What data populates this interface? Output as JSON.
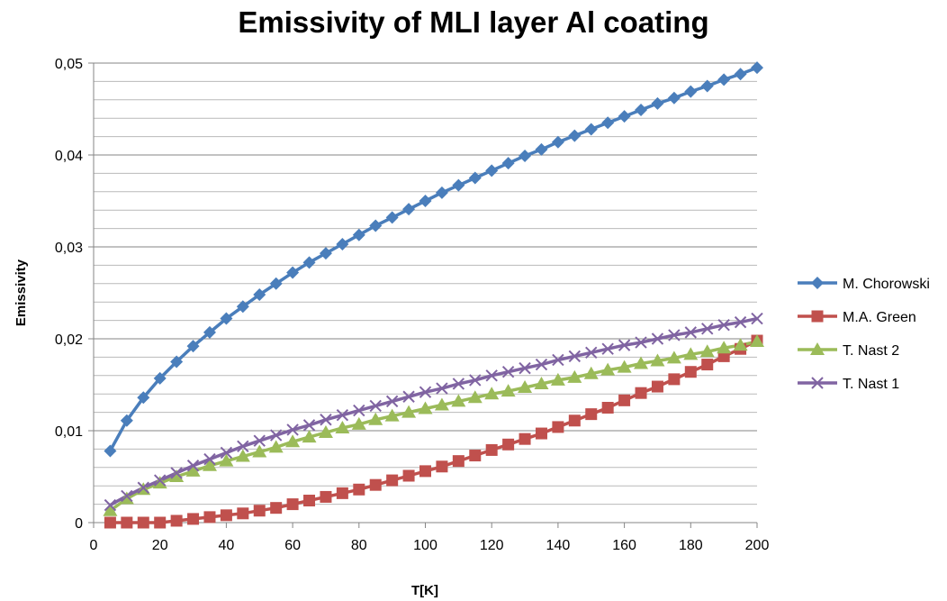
{
  "chart_data": {
    "type": "line",
    "title": "Emissivity of MLI layer Al coating",
    "xlabel": "T[K]",
    "ylabel": "Emissivity",
    "xlim": [
      0,
      200
    ],
    "ylim": [
      0,
      0.05
    ],
    "x_ticks": [
      0,
      20,
      40,
      60,
      80,
      100,
      120,
      140,
      160,
      180,
      200
    ],
    "x_tick_labels": [
      "0",
      "20",
      "40",
      "60",
      "80",
      "100",
      "120",
      "140",
      "160",
      "180",
      "200"
    ],
    "y_ticks": [
      0,
      0.01,
      0.02,
      0.03,
      0.04,
      0.05
    ],
    "y_tick_labels": [
      "0",
      "0,01",
      "0,02",
      "0,03",
      "0,04",
      "0,05"
    ],
    "grid": "horizontal",
    "legend_position": "right",
    "x": [
      5,
      10,
      15,
      20,
      25,
      30,
      35,
      40,
      45,
      50,
      55,
      60,
      65,
      70,
      75,
      80,
      85,
      90,
      95,
      100,
      105,
      110,
      115,
      120,
      125,
      130,
      135,
      140,
      145,
      150,
      155,
      160,
      165,
      170,
      175,
      180,
      185,
      190,
      195,
      200
    ],
    "series": [
      {
        "name": "M. Chorowski",
        "color": "#4a7ebb",
        "marker": "diamond",
        "values": [
          0.0078,
          0.0111,
          0.0136,
          0.0157,
          0.0175,
          0.0192,
          0.0207,
          0.0222,
          0.0235,
          0.0248,
          0.026,
          0.0272,
          0.0283,
          0.0293,
          0.0303,
          0.0313,
          0.0323,
          0.0332,
          0.0341,
          0.035,
          0.0359,
          0.0367,
          0.0375,
          0.0383,
          0.0391,
          0.0399,
          0.0406,
          0.0414,
          0.0421,
          0.0428,
          0.0435,
          0.0442,
          0.0449,
          0.0456,
          0.0462,
          0.0469,
          0.0475,
          0.0482,
          0.0488,
          0.0495
        ]
      },
      {
        "name": "M.A. Green",
        "color": "#c0504d",
        "marker": "square",
        "values": [
          0.0,
          0.0,
          0.0,
          0.0,
          0.0002,
          0.0004,
          0.0006,
          0.0008,
          0.001,
          0.0013,
          0.0016,
          0.002,
          0.0024,
          0.0028,
          0.0032,
          0.0036,
          0.0041,
          0.0046,
          0.0051,
          0.0056,
          0.0061,
          0.0067,
          0.0073,
          0.0079,
          0.0085,
          0.0091,
          0.0097,
          0.0104,
          0.0111,
          0.0118,
          0.0125,
          0.0133,
          0.0141,
          0.0148,
          0.0156,
          0.0164,
          0.0172,
          0.0181,
          0.0189,
          0.0198
        ]
      },
      {
        "name": "T. Nast 2",
        "color": "#9bbb59",
        "marker": "triangle",
        "values": [
          0.0013,
          0.0026,
          0.0036,
          0.0043,
          0.005,
          0.0056,
          0.0062,
          0.0067,
          0.0072,
          0.0077,
          0.0082,
          0.0088,
          0.0093,
          0.0098,
          0.0103,
          0.0107,
          0.0112,
          0.0116,
          0.012,
          0.0124,
          0.0128,
          0.0132,
          0.0136,
          0.014,
          0.0143,
          0.0147,
          0.0151,
          0.0155,
          0.0158,
          0.0162,
          0.0166,
          0.0169,
          0.0173,
          0.0176,
          0.0179,
          0.0183,
          0.0186,
          0.019,
          0.0193,
          0.0197
        ]
      },
      {
        "name": "T. Nast 1",
        "color": "#8064a2",
        "marker": "x",
        "values": [
          0.0019,
          0.0029,
          0.0038,
          0.0046,
          0.0054,
          0.0062,
          0.0069,
          0.0076,
          0.0083,
          0.0089,
          0.0095,
          0.0101,
          0.0106,
          0.0112,
          0.0117,
          0.0122,
          0.0127,
          0.0132,
          0.0137,
          0.0142,
          0.0146,
          0.0151,
          0.0155,
          0.016,
          0.0164,
          0.0168,
          0.0172,
          0.0177,
          0.0181,
          0.0185,
          0.0189,
          0.0193,
          0.0196,
          0.02,
          0.0204,
          0.0207,
          0.0211,
          0.0215,
          0.0218,
          0.0222
        ]
      }
    ]
  }
}
